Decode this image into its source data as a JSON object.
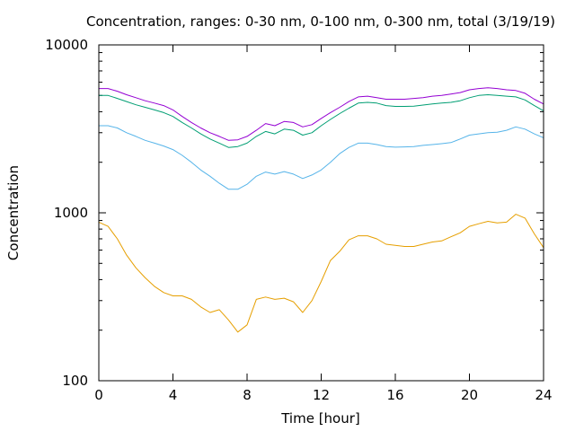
{
  "chart_data": {
    "type": "line",
    "title": "Concentration, ranges: 0-30 nm, 0-100 nm, 0-300 nm, total (3/19/19)",
    "xlabel": "Time [hour]",
    "ylabel": "Concentration",
    "xlim": [
      0,
      24
    ],
    "ylim": [
      100,
      10000
    ],
    "yscale": "log",
    "grid": false,
    "legend": "none",
    "x_ticks": [
      0,
      4,
      8,
      12,
      16,
      20,
      24
    ],
    "x_tick_labels": [
      "0",
      "4",
      "8",
      "12",
      "16",
      "20",
      "24"
    ],
    "y_ticks": [
      100,
      1000,
      10000
    ],
    "y_tick_labels": [
      "100",
      "1000",
      "10000"
    ],
    "series": [
      {
        "color": "#e69f00",
        "x": [
          0,
          0.5,
          1,
          1.5,
          2,
          2.5,
          3,
          3.5,
          4,
          4.5,
          5,
          5.5,
          6,
          6.5,
          7,
          7.5,
          8,
          8.5,
          9,
          9.5,
          10,
          10.5,
          11,
          11.5,
          12,
          12.5,
          13,
          13.5,
          14,
          14.5,
          15,
          15.5,
          16,
          16.5,
          17,
          17.5,
          18,
          18.5,
          19,
          19.5,
          20,
          20.5,
          21,
          21.5,
          22,
          22.5,
          23,
          23.5,
          24
        ],
        "y": [
          880,
          830,
          700,
          560,
          470,
          410,
          365,
          335,
          320,
          320,
          305,
          275,
          255,
          265,
          230,
          195,
          215,
          305,
          315,
          305,
          310,
          295,
          255,
          300,
          390,
          520,
          590,
          690,
          730,
          730,
          700,
          650,
          640,
          630,
          630,
          650,
          670,
          680,
          720,
          760,
          830,
          860,
          890,
          870,
          880,
          980,
          930,
          750,
          620
        ]
      },
      {
        "color": "#56b4e9",
        "x": [
          0,
          0.5,
          1,
          1.5,
          2,
          2.5,
          3,
          3.5,
          4,
          4.5,
          5,
          5.5,
          6,
          6.5,
          7,
          7.5,
          8,
          8.5,
          9,
          9.5,
          10,
          10.5,
          11,
          11.5,
          12,
          12.5,
          13,
          13.5,
          14,
          14.5,
          15,
          15.5,
          16,
          16.5,
          17,
          17.5,
          18,
          18.5,
          19,
          19.5,
          20,
          20.5,
          21,
          21.5,
          22,
          22.5,
          23,
          23.5,
          24
        ],
        "y": [
          3300,
          3300,
          3200,
          3000,
          2850,
          2700,
          2600,
          2500,
          2380,
          2200,
          2000,
          1800,
          1650,
          1500,
          1380,
          1380,
          1480,
          1650,
          1750,
          1700,
          1760,
          1700,
          1600,
          1680,
          1800,
          2000,
          2250,
          2450,
          2600,
          2600,
          2550,
          2480,
          2460,
          2470,
          2480,
          2520,
          2550,
          2580,
          2620,
          2750,
          2900,
          2950,
          3000,
          3020,
          3100,
          3250,
          3150,
          2950,
          2800
        ]
      },
      {
        "color": "#009e73",
        "x": [
          0,
          0.5,
          1,
          1.5,
          2,
          2.5,
          3,
          3.5,
          4,
          4.5,
          5,
          5.5,
          6,
          6.5,
          7,
          7.5,
          8,
          8.5,
          9,
          9.5,
          10,
          10.5,
          11,
          11.5,
          12,
          12.5,
          13,
          13.5,
          14,
          14.5,
          15,
          15.5,
          16,
          16.5,
          17,
          17.5,
          18,
          18.5,
          19,
          19.5,
          20,
          20.5,
          21,
          21.5,
          22,
          22.5,
          23,
          23.5,
          24
        ],
        "y": [
          5000,
          5000,
          4800,
          4600,
          4400,
          4250,
          4100,
          3950,
          3750,
          3450,
          3200,
          2950,
          2750,
          2600,
          2450,
          2480,
          2600,
          2850,
          3050,
          2950,
          3150,
          3100,
          2900,
          3000,
          3300,
          3600,
          3900,
          4200,
          4500,
          4550,
          4500,
          4350,
          4300,
          4300,
          4320,
          4380,
          4450,
          4500,
          4550,
          4650,
          4850,
          5000,
          5050,
          5000,
          4950,
          4900,
          4700,
          4350,
          4050
        ]
      },
      {
        "color": "#9400d3",
        "x": [
          0,
          0.5,
          1,
          1.5,
          2,
          2.5,
          3,
          3.5,
          4,
          4.5,
          5,
          5.5,
          6,
          6.5,
          7,
          7.5,
          8,
          8.5,
          9,
          9.5,
          10,
          10.5,
          11,
          11.5,
          12,
          12.5,
          13,
          13.5,
          14,
          14.5,
          15,
          15.5,
          16,
          16.5,
          17,
          17.5,
          18,
          18.5,
          19,
          19.5,
          20,
          20.5,
          21,
          21.5,
          22,
          22.5,
          23,
          23.5,
          24
        ],
        "y": [
          5500,
          5500,
          5300,
          5050,
          4850,
          4650,
          4500,
          4350,
          4100,
          3750,
          3450,
          3200,
          3000,
          2850,
          2700,
          2720,
          2850,
          3100,
          3400,
          3300,
          3500,
          3450,
          3250,
          3350,
          3650,
          3950,
          4250,
          4600,
          4900,
          4950,
          4850,
          4750,
          4750,
          4750,
          4800,
          4850,
          4950,
          5000,
          5100,
          5200,
          5400,
          5500,
          5550,
          5500,
          5400,
          5350,
          5150,
          4750,
          4450
        ]
      }
    ]
  }
}
